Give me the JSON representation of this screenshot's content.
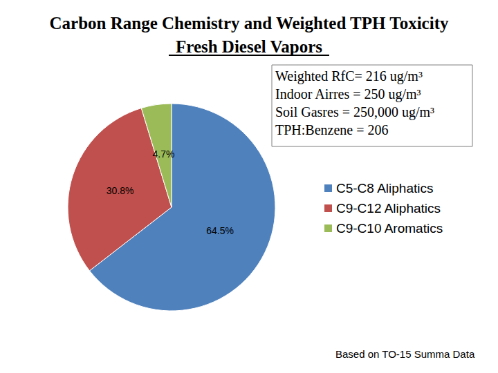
{
  "chart_data": {
    "type": "pie",
    "title": "Carbon Range Chemistry and Weighted TPH Toxicity",
    "subtitle": "Fresh Diesel Vapors",
    "categories": [
      "C5-C8 Aliphatics",
      "C9-C12 Aliphatics",
      "C9-C10 Aromatics"
    ],
    "values": [
      64.5,
      30.8,
      4.7
    ],
    "value_labels": [
      "64.5%",
      "30.8%",
      "4.7%"
    ],
    "colors": [
      "#4f81bd",
      "#c0504d",
      "#9bbb59"
    ],
    "data_labels": true,
    "legend": "right",
    "annotations": [
      "Weighted RfC= 216 ug/m³",
      "Indoor Airres = 250 ug/m³",
      "Soil Gasres = 250,000 ug/m³",
      "TPH:Benzene = 206"
    ],
    "source": "Based on TO-15 Summa Data"
  }
}
